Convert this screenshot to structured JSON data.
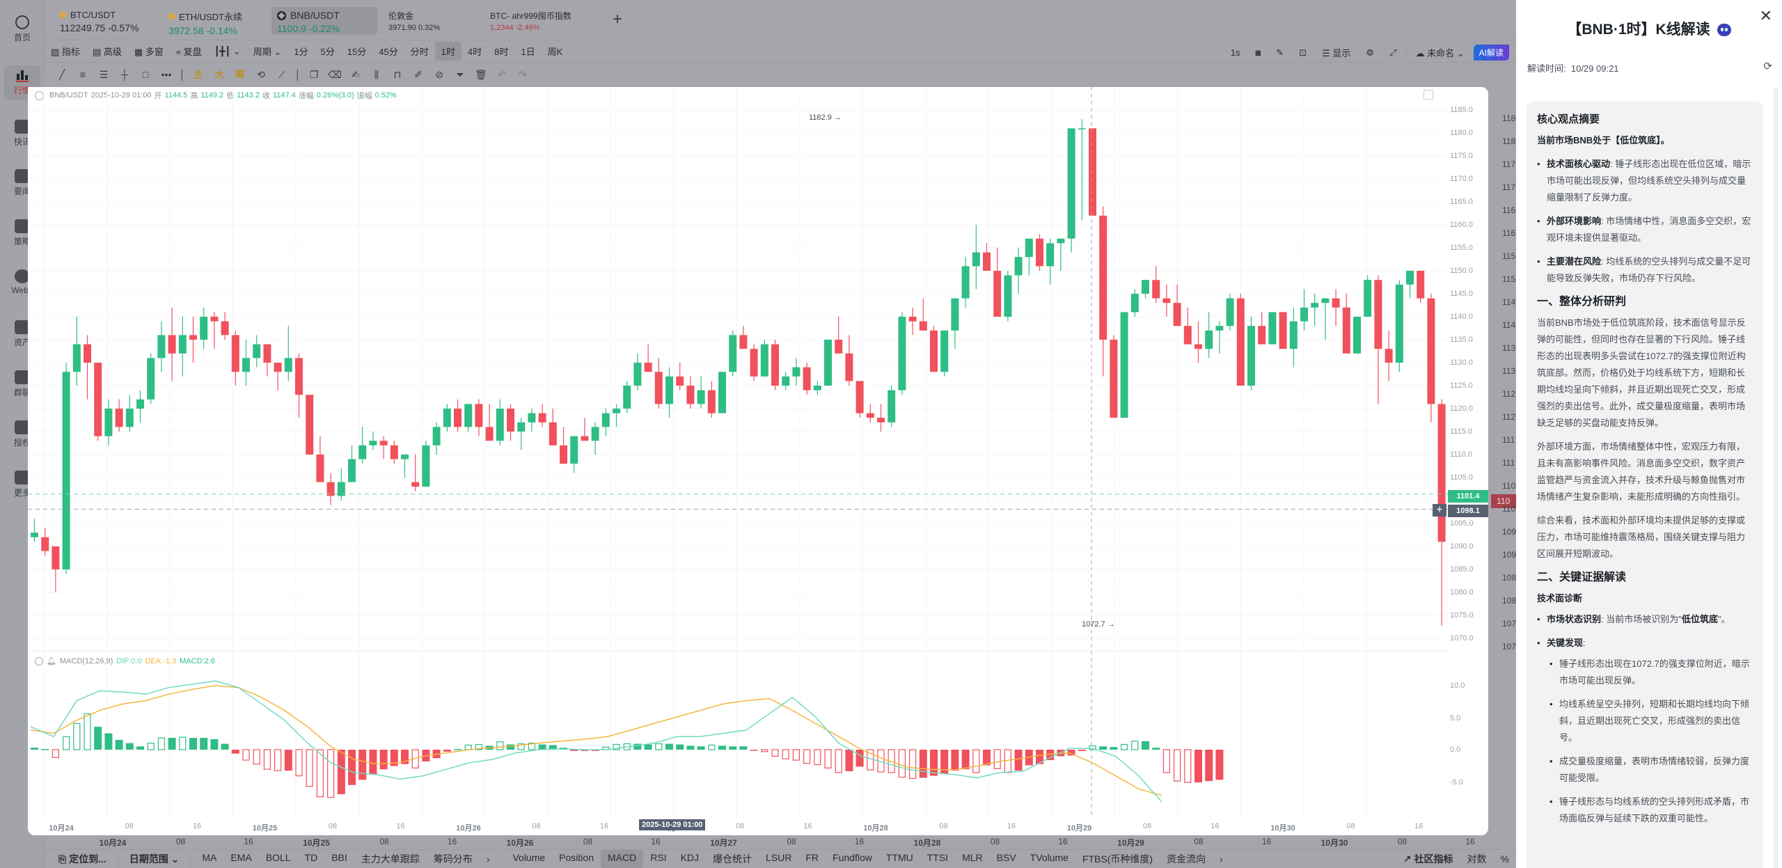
{
  "sidebar": {
    "items": [
      {
        "label": "首页",
        "icon": "home-logo-icon"
      },
      {
        "label": "行情",
        "icon": "bar-chart-icon",
        "active": true
      },
      {
        "label": "快讯",
        "icon": "flash-news-icon"
      },
      {
        "label": "要闻",
        "icon": "document-icon"
      },
      {
        "label": "策略",
        "icon": "robot-icon"
      },
      {
        "label": "Web3",
        "icon": "web3-icon"
      },
      {
        "label": "资产",
        "icon": "wallet-icon"
      },
      {
        "label": "群聊",
        "icon": "chat-icon"
      },
      {
        "label": "授权",
        "icon": "key-icon"
      },
      {
        "label": "更多",
        "icon": "grid-icon"
      }
    ]
  },
  "tickers": [
    {
      "name": "BTC/USDT",
      "price": "112249.75",
      "change": "-0.57%",
      "color": "#2a2c30"
    },
    {
      "name": "ETH/USDT永续",
      "price": "3972.58",
      "change": "-0.14%",
      "color": "#1d8a63"
    },
    {
      "name": "BNB/USDT",
      "price": "1100.9",
      "change": "-0.22%",
      "color": "#1d8a63",
      "selected": true
    },
    {
      "name": "伦敦金",
      "price": "3971.90",
      "change": "0.32%",
      "color": "#2a2c30"
    },
    {
      "name": "BTC- ahr999囤币指数",
      "price": "1.2344",
      "change": "-2.46%",
      "color": "#b83a44"
    }
  ],
  "toolbar": {
    "indicator": "指标",
    "advanced": "高级",
    "multi_window": "多窗",
    "replay": "复盘",
    "chart_type": "ɩɩɩ",
    "period": "周期",
    "intervals": [
      "1分",
      "5分",
      "15分",
      "45分",
      "分时",
      "1时",
      "4时",
      "8时",
      "1日",
      "周K"
    ],
    "selected_interval": "1时",
    "right": {
      "refresh_rate": "1s",
      "display": "显示",
      "layout_name": "未命名",
      "ai_button": "AI解读"
    }
  },
  "drawbar": {
    "gold_labels": [
      "主",
      "大",
      "筹"
    ]
  },
  "chart": {
    "legend": {
      "symbol": "BNB/USDT",
      "time": "2025-10-29 01:00",
      "open_label": "开",
      "open": "1144.5",
      "high_label": "高",
      "high": "1149.2",
      "low_label": "低",
      "low": "1143.2",
      "close_label": "收",
      "close": "1147.4",
      "change_label": "涨幅",
      "change": "0.26%(3.0)",
      "amplitude_label": "振幅",
      "amplitude": "0.52%"
    },
    "high_marker": "1182.9 →",
    "low_marker": "1072.7 →",
    "last_price_tag": "1101.4",
    "crosshair_price_tag": "1098.1",
    "crosshair_time_tag": "2025-10-29 01:00",
    "outer_price_tag": "110",
    "macd_legend": {
      "name": "MACD(12,26,9)",
      "dif": "DIF:0.0",
      "dea": "DEA:-1.3",
      "macd": "MACD:2.6"
    }
  },
  "chart_data": {
    "type": "candlestick",
    "title": "BNB/USDT 1H",
    "price_axis": [
      "1185.0",
      "1180.0",
      "1175.0",
      "1170.0",
      "1165.0",
      "1160.0",
      "1155.0",
      "1150.0",
      "1145.0",
      "1140.0",
      "1135.0",
      "1130.0",
      "1125.0",
      "1120.0",
      "1115.0",
      "1110.0",
      "1105.0",
      "1100.0",
      "1095.0",
      "1090.0",
      "1085.0",
      "1080.0",
      "1075.0",
      "1070.0"
    ],
    "macd_axis": [
      "10.0",
      "5.0",
      "0.0",
      "-5.0"
    ],
    "x_ticks": [
      {
        "label": "10月24",
        "bold": true
      },
      {
        "label": "08"
      },
      {
        "label": "16"
      },
      {
        "label": "10月25",
        "bold": true
      },
      {
        "label": "08"
      },
      {
        "label": "16"
      },
      {
        "label": "10月26",
        "bold": true
      },
      {
        "label": "08"
      },
      {
        "label": "16"
      },
      {
        "label": "10月27",
        "bold": true
      },
      {
        "label": "08"
      },
      {
        "label": "16"
      },
      {
        "label": "10月28",
        "bold": true
      },
      {
        "label": "08"
      },
      {
        "label": "16"
      },
      {
        "label": "10月29",
        "bold": true
      },
      {
        "label": "08"
      },
      {
        "label": "16"
      },
      {
        "label": "10月30",
        "bold": true
      },
      {
        "label": "08"
      },
      {
        "label": "16"
      }
    ],
    "period_high": 1182.9,
    "period_low": 1072.7,
    "last_price": 1101.4,
    "candles_ohlc_approx": [
      [
        1092,
        1096,
        1091,
        1093
      ],
      [
        1092,
        1094,
        1088,
        1089
      ],
      [
        1090,
        1090,
        1080,
        1085
      ],
      [
        1085,
        1130,
        1084,
        1128
      ],
      [
        1128,
        1140,
        1125,
        1134
      ],
      [
        1134,
        1136,
        1122,
        1130
      ],
      [
        1130,
        1130,
        1113,
        1114
      ],
      [
        1114,
        1122,
        1112,
        1120
      ],
      [
        1120,
        1122,
        1115,
        1116
      ],
      [
        1116,
        1123,
        1115,
        1120
      ],
      [
        1120,
        1124,
        1117,
        1122
      ],
      [
        1122,
        1132,
        1121,
        1131
      ],
      [
        1131,
        1139,
        1128,
        1136
      ],
      [
        1136,
        1142,
        1126,
        1132
      ],
      [
        1132,
        1140,
        1127,
        1136
      ],
      [
        1136,
        1140,
        1130,
        1135
      ],
      [
        1135,
        1142,
        1133,
        1140
      ],
      [
        1140,
        1141,
        1133,
        1139
      ],
      [
        1139,
        1141,
        1135,
        1136
      ],
      [
        1136,
        1137,
        1125,
        1128
      ],
      [
        1128,
        1135,
        1125,
        1131
      ],
      [
        1131,
        1136,
        1129,
        1134
      ],
      [
        1134,
        1134,
        1127,
        1130
      ],
      [
        1130,
        1130,
        1124,
        1128
      ],
      [
        1128,
        1138,
        1126,
        1131
      ],
      [
        1131,
        1132,
        1118,
        1123
      ],
      [
        1123,
        1123,
        1110,
        1110
      ],
      [
        1110,
        1114,
        1105,
        1104
      ],
      [
        1104,
        1106,
        1099,
        1101
      ],
      [
        1101,
        1107,
        1100,
        1104
      ],
      [
        1104,
        1112,
        1104,
        1109
      ],
      [
        1109,
        1116,
        1108,
        1112
      ],
      [
        1112,
        1115,
        1111,
        1113
      ],
      [
        1113,
        1114,
        1109,
        1112
      ],
      [
        1112,
        1113,
        1108,
        1109
      ],
      [
        1109,
        1110,
        1105,
        1110
      ],
      [
        1104,
        1110,
        1102,
        1103
      ],
      [
        1103,
        1113,
        1103,
        1112
      ],
      [
        1112,
        1117,
        1110,
        1116
      ],
      [
        1116,
        1121,
        1115,
        1120
      ],
      [
        1120,
        1122,
        1115,
        1116
      ],
      [
        1116,
        1121,
        1115,
        1121
      ],
      [
        1121,
        1122,
        1114,
        1116
      ],
      [
        1116,
        1121,
        1114,
        1113
      ],
      [
        1113,
        1122,
        1112,
        1120
      ],
      [
        1120,
        1121,
        1113,
        1115
      ],
      [
        1115,
        1118,
        1111,
        1117
      ],
      [
        1117,
        1120,
        1115,
        1119
      ],
      [
        1119,
        1121,
        1116,
        1117
      ],
      [
        1117,
        1120,
        1113,
        1112
      ],
      [
        1112,
        1116,
        1108,
        1108
      ],
      [
        1108,
        1114,
        1106,
        1114
      ],
      [
        1114,
        1118,
        1113,
        1113
      ],
      [
        1113,
        1117,
        1110,
        1116
      ],
      [
        1116,
        1120,
        1114,
        1119
      ],
      [
        1119,
        1121,
        1116,
        1120
      ]
    ],
    "macd": {
      "series": [
        {
          "name": "DIF",
          "color": "#5fd6bd"
        },
        {
          "name": "DEA",
          "color": "#f5b53f"
        },
        {
          "name": "MACD histogram",
          "positive_color": "#2ebd85",
          "negative_color": "#f0515c"
        }
      ],
      "current": {
        "DIF": 0.0,
        "DEA": -1.3,
        "MACD": 2.6
      }
    }
  },
  "bottombar": {
    "locate": "定位到...",
    "date_range": "日期范围",
    "main_indicators": [
      "MA",
      "EMA",
      "BOLL",
      "TD",
      "BBI",
      "主力大单跟踪",
      "筹码分布"
    ],
    "sub_indicators": [
      "Volume",
      "Position",
      "MACD",
      "RSI",
      "KDJ",
      "爆仓统计",
      "LSUR",
      "FR",
      "Fundflow",
      "TTMU",
      "TTSI",
      "MLR",
      "BSV",
      "TVolume",
      "FTBS(币种维度)",
      "资金流向"
    ],
    "selected_sub": "MACD",
    "community": "社区指标",
    "log": "对数",
    "percent": "%"
  },
  "ai_panel": {
    "title": "【BNB·1时】K线解读",
    "read_time_label": "解读时间:",
    "read_time": "10/29 09:21",
    "summary_heading": "核心观点摘要",
    "summary_line": "当前市场BNB处于【低位筑底】。",
    "summary_points": [
      {
        "key": "技术面核心驱动",
        "text": ": 锤子线形态出现在低位区域，暗示市场可能出现反弹，但均线系统空头排列与成交量缩量限制了反弹力度。"
      },
      {
        "key": "外部环境影响",
        "text": ": 市场情绪中性，消息面多空交织，宏观环境未提供显著驱动。"
      },
      {
        "key": "主要潜在风险",
        "text": ": 均线系统的空头排列与成交量不足可能导致反弹失败，市场仍存下行风险。"
      }
    ],
    "section1_heading": "一、整体分析研判",
    "section1_paragraphs": [
      "当前BNB市场处于低位筑底阶段，技术面信号显示反弹的可能性，但同时也存在显著的下行风险。锤子线形态的出现表明多头尝试在1072.7的强支撑位附近构筑底部。然而，价格仍处于均线系统下方，短期和长期均线均呈向下倾斜，并且近期出现死亡交叉，形成强烈的卖出信号。此外，成交量极度缩量，表明市场缺乏足够的买盘动能支持反弹。",
      "外部环境方面，市场情绪整体中性，宏观压力有限，且未有高影响事件风险。消息面多空交织，数字资产监管趋严与资金流入并存，技术升级与鲸鱼抛售对市场情绪产生复杂影响，未能形成明确的方向性指引。",
      "综合来看，技术面和外部环境均未提供足够的支撑或压力，市场可能维持震荡格局，围绕关键支撑与阻力区间展开短期波动。"
    ],
    "section2_heading": "二、关键证据解读",
    "tech_heading": "技术面诊断",
    "state_key": "市场状态识别",
    "state_text": ": 当前市场被识别为\"",
    "state_value": "低位筑底",
    "state_end": "\"。",
    "findings_key": "关键发现",
    "findings_colon": ":",
    "findings": [
      "锤子线形态出现在1072.7的强支撑位附近，暗示市场可能出现反弹。",
      "均线系统呈空头排列，短期和长期均线均向下倾斜，且近期出现死亡交叉，形成强烈的卖出信号。",
      "成交量极度缩量，表明市场情绪较弱，反弹力度可能受限。",
      "锤子线形态与均线系统的空头排列形成矛盾，市场面临反弹与延续下跌的双重可能性。"
    ]
  }
}
